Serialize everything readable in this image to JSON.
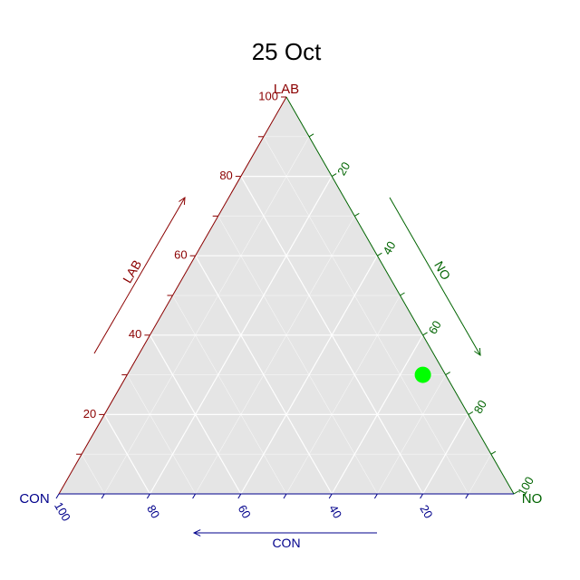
{
  "chart_data": {
    "type": "scatter",
    "subtype": "ternary",
    "title": "25 Oct",
    "axes": {
      "top": {
        "name": "LAB",
        "color": "#8b0000",
        "ticks": [
          20,
          40,
          60,
          80,
          100
        ]
      },
      "right": {
        "name": "NO",
        "color": "#006400",
        "ticks": [
          20,
          40,
          60,
          80,
          100
        ]
      },
      "left": {
        "name": "CON",
        "color": "#00008b",
        "ticks": [
          20,
          40,
          60,
          80,
          100
        ]
      }
    },
    "vertex_labels": {
      "top": "LAB",
      "left": "CON",
      "right": "NO"
    },
    "arrow_labels": {
      "top": "LAB",
      "right": "NO",
      "left": "CON"
    },
    "points": [
      {
        "LAB": 30,
        "NO": 65,
        "CON": 5
      }
    ],
    "point_color": "#00ff00",
    "panel_color": "#e5e5e5",
    "grid": true,
    "grid_step": 10
  }
}
